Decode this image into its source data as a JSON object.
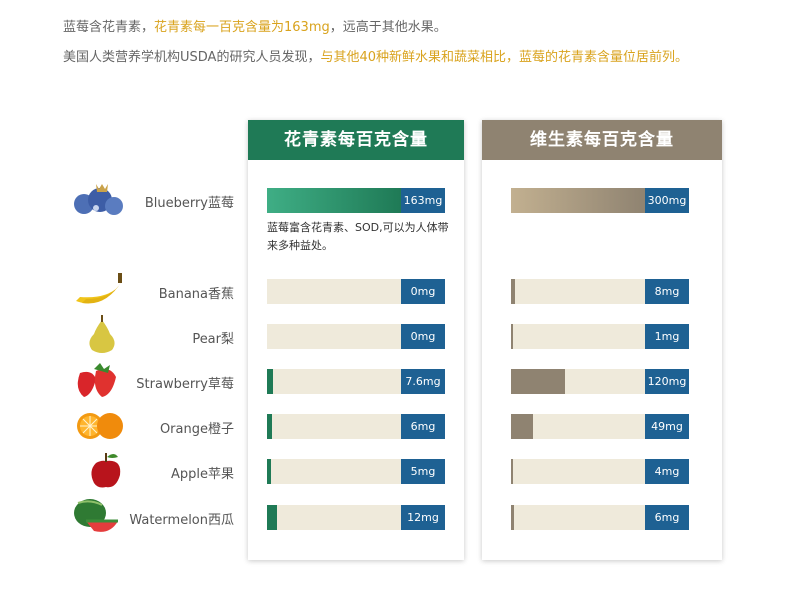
{
  "intro": {
    "line1_a": "蓝莓含花青素，",
    "line1_b": "花青素每一百克含量为163mg",
    "line1_c": "，远高于其他水果。",
    "line2_a": "美国人类营养学机构USDA的研究人员发现，",
    "line2_b": "与其他40种新鲜水果和蔬菜相比，蓝莓的花青素含量位居前列。"
  },
  "colors": {
    "header_green": "#1f7a56",
    "header_taupe": "#8f8371",
    "fill_green": "#1f7a56",
    "fill_taupe": "#8f8371",
    "track": "#efeadb",
    "value_box": "#1e6193",
    "highlight": "#d9a31e"
  },
  "blueberry_note": "蓝莓富含花青素、SOD,可以为人体带来多种益处。",
  "chart_data": {
    "type": "bar",
    "categories": [
      "Blueberry蓝莓",
      "Banana香蕉",
      "Pear梨",
      "Strawberry草莓",
      "Orange橙子",
      "Apple苹果",
      "Watermelon西瓜"
    ],
    "icons": [
      "blueberry-icon",
      "banana-icon",
      "pear-icon",
      "strawberry-icon",
      "orange-icon",
      "apple-icon",
      "watermelon-icon"
    ],
    "series": [
      {
        "name": "花青素每百克含量",
        "unit": "mg",
        "values": [
          163,
          0,
          0,
          7.6,
          6,
          5,
          12
        ],
        "labels": [
          "163mg",
          "0mg",
          "0mg",
          "7.6mg",
          "6mg",
          "5mg",
          "12mg"
        ],
        "max": 163
      },
      {
        "name": "维生素每百克含量",
        "unit": "mg",
        "values": [
          300,
          8,
          1,
          120,
          49,
          4,
          6
        ],
        "labels": [
          "300mg",
          "8mg",
          "1mg",
          "120mg",
          "49mg",
          "4mg",
          "6mg"
        ],
        "max": 300
      }
    ]
  }
}
